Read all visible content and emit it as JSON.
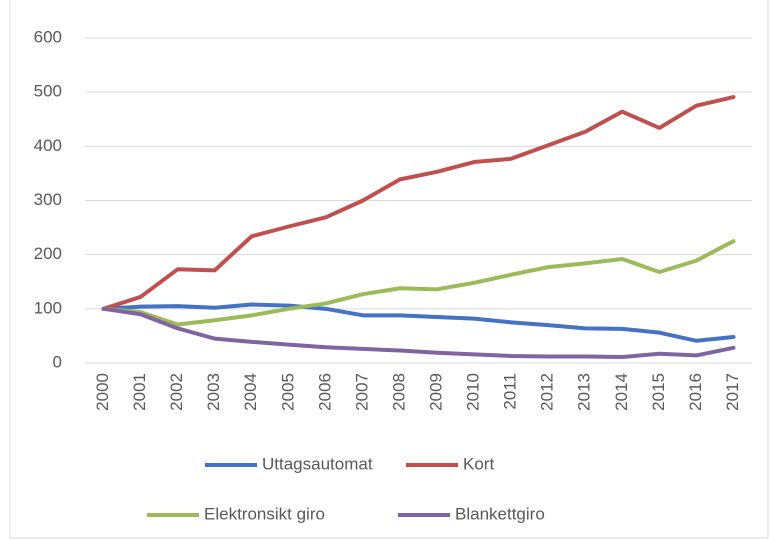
{
  "chart_data": {
    "type": "line",
    "categories": [
      "2000",
      "2001",
      "2002",
      "2003",
      "2004",
      "2005",
      "2006",
      "2007",
      "2008",
      "2009",
      "2010",
      "2011",
      "2012",
      "2013",
      "2014",
      "2015",
      "2016",
      "2017"
    ],
    "series": [
      {
        "name": "Uttagsautomat",
        "color": "#4472c4",
        "values": [
          100,
          104,
          105,
          102,
          108,
          106,
          100,
          88,
          88,
          85,
          82,
          75,
          70,
          64,
          63,
          56,
          41,
          48
        ]
      },
      {
        "name": "Kort",
        "color": "#c0504d",
        "values": [
          100,
          122,
          173,
          171,
          234,
          252,
          269,
          300,
          339,
          353,
          371,
          377,
          402,
          427,
          464,
          434,
          475,
          491
        ]
      },
      {
        "name": "Elektronsikt giro",
        "color": "#9bbb59",
        "values": [
          100,
          94,
          71,
          79,
          88,
          100,
          110,
          127,
          138,
          136,
          148,
          163,
          177,
          184,
          192,
          168,
          189,
          225
        ]
      },
      {
        "name": "Blankettgiro",
        "color": "#8064a2",
        "values": [
          100,
          90,
          64,
          45,
          39,
          34,
          29,
          26,
          23,
          19,
          16,
          13,
          12,
          12,
          11,
          17,
          14,
          28
        ]
      }
    ],
    "ylim": [
      0,
      600
    ],
    "yticks": [
      0,
      100,
      200,
      300,
      400,
      500,
      600
    ],
    "grid": true,
    "legend": "bottom"
  }
}
